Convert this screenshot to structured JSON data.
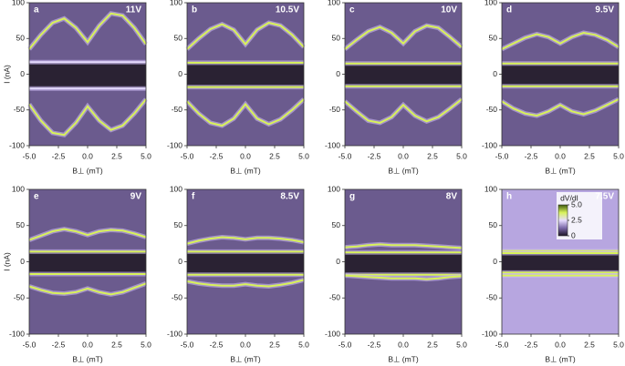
{
  "chart_data": [
    {
      "type": "heatmap",
      "label": "a",
      "title": "11V",
      "ylabel": "I (nA)",
      "xlabel": "B⊥ (mT)",
      "background": "#6b5b8e",
      "x": [
        -5,
        -4,
        -3,
        -2,
        -1,
        0,
        1,
        2,
        3,
        4,
        5
      ],
      "xlim": [
        -5,
        5
      ],
      "xticks": [
        {
          "value": -5,
          "label": "-5.0"
        },
        -2.5,
        {
          "value": 0,
          "label": "0.0"
        },
        2.5,
        {
          "value": 5,
          "label": "5.0"
        }
      ],
      "ylim": [
        -100,
        100
      ],
      "yticks": [
        -100,
        -50,
        0,
        50,
        100
      ],
      "series": [
        {
          "color": "#d8f25a",
          "values": [
            35,
            55,
            72,
            78,
            65,
            45,
            68,
            85,
            82,
            65,
            42
          ]
        },
        {
          "color": "#e6dcff",
          "x": [
            -5,
            5
          ],
          "values": [
            17,
            17
          ]
        },
        {
          "color": "#e6dcff",
          "x": [
            -5,
            5
          ],
          "values": [
            -20,
            -20
          ]
        },
        {
          "color": "#d8f25a",
          "values": [
            -42,
            -65,
            -82,
            -85,
            -68,
            -45,
            -65,
            -78,
            -72,
            -55,
            -35
          ]
        }
      ]
    },
    {
      "type": "heatmap",
      "label": "b",
      "title": "10.5V",
      "xlabel": "B⊥ (mT)",
      "background": "#6b5b8e",
      "x": [
        -5,
        -4,
        -3,
        -2,
        -1,
        0,
        1,
        2,
        3,
        4,
        5
      ],
      "xlim": [
        -5,
        5
      ],
      "xticks": [
        {
          "value": -5,
          "label": "-5.0"
        },
        -2.5,
        {
          "value": 0,
          "label": "0.0"
        },
        2.5,
        {
          "value": 5,
          "label": "5.0"
        }
      ],
      "ylim": [
        -100,
        100
      ],
      "yticks": [
        -100,
        -50,
        0,
        50,
        100
      ],
      "series": [
        {
          "color": "#d8f25a",
          "values": [
            35,
            50,
            63,
            70,
            62,
            42,
            62,
            72,
            68,
            55,
            38
          ]
        },
        {
          "color": "#d8f25a",
          "x": [
            -5,
            5
          ],
          "values": [
            16,
            16
          ]
        },
        {
          "color": "#d8f25a",
          "x": [
            -5,
            5
          ],
          "values": [
            -18,
            -18
          ]
        },
        {
          "color": "#d8f25a",
          "values": [
            -38,
            -55,
            -68,
            -72,
            -62,
            -42,
            -62,
            -70,
            -63,
            -50,
            -35
          ]
        }
      ]
    },
    {
      "type": "heatmap",
      "label": "c",
      "title": "10V",
      "xlabel": "B⊥ (mT)",
      "background": "#6b5b8e",
      "x": [
        -5,
        -4,
        -3,
        -2,
        -1,
        0,
        1,
        2,
        3,
        4,
        5
      ],
      "xlim": [
        -5,
        5
      ],
      "xticks": [
        {
          "value": -5,
          "label": "-5.0"
        },
        -2.5,
        {
          "value": 0,
          "label": "0.0"
        },
        2.5,
        {
          "value": 5,
          "label": "5.0"
        }
      ],
      "ylim": [
        -100,
        100
      ],
      "yticks": [
        -100,
        -50,
        0,
        50,
        100
      ],
      "series": [
        {
          "color": "#d8f25a",
          "values": [
            35,
            48,
            60,
            66,
            58,
            43,
            60,
            68,
            65,
            52,
            38
          ]
        },
        {
          "color": "#d8f25a",
          "x": [
            -5,
            5
          ],
          "values": [
            15,
            15
          ]
        },
        {
          "color": "#d8f25a",
          "x": [
            -5,
            5
          ],
          "values": [
            -17,
            -17
          ]
        },
        {
          "color": "#d8f25a",
          "values": [
            -38,
            -52,
            -65,
            -68,
            -60,
            -43,
            -58,
            -66,
            -60,
            -48,
            -35
          ]
        }
      ]
    },
    {
      "type": "heatmap",
      "label": "d",
      "title": "9.5V",
      "xlabel": "B⊥ (mT)",
      "background": "#6b5b8e",
      "x": [
        -5,
        -4,
        -3,
        -2,
        -1,
        0,
        1,
        2,
        3,
        4,
        5
      ],
      "xlim": [
        -5,
        5
      ],
      "xticks": [
        {
          "value": -5,
          "label": "-5.0"
        },
        -2.5,
        {
          "value": 0,
          "label": "0.0"
        },
        2.5,
        {
          "value": 5,
          "label": "5.0"
        }
      ],
      "ylim": [
        -100,
        100
      ],
      "yticks": [
        -100,
        -50,
        0,
        50,
        100
      ],
      "series": [
        {
          "color": "#d8f25a",
          "values": [
            35,
            43,
            51,
            56,
            52,
            43,
            52,
            58,
            55,
            48,
            38
          ]
        },
        {
          "color": "#d8f25a",
          "x": [
            -5,
            5
          ],
          "values": [
            15,
            15
          ]
        },
        {
          "color": "#d8f25a",
          "x": [
            -5,
            5
          ],
          "values": [
            -17,
            -17
          ]
        },
        {
          "color": "#d8f25a",
          "values": [
            -38,
            -48,
            -55,
            -58,
            -52,
            -43,
            -52,
            -56,
            -51,
            -43,
            -35
          ]
        }
      ]
    },
    {
      "type": "heatmap",
      "label": "e",
      "title": "9V",
      "ylabel": "I (nA)",
      "xlabel": "B⊥ (mT)",
      "background": "#6b5b8e",
      "x": [
        -5,
        -4,
        -3,
        -2,
        -1,
        0,
        1,
        2,
        3,
        4,
        5
      ],
      "xlim": [
        -5,
        5
      ],
      "xticks": [
        {
          "value": -5,
          "label": "-5.0"
        },
        -2.5,
        {
          "value": 0,
          "label": "0.0"
        },
        2.5,
        {
          "value": 5,
          "label": "5.0"
        }
      ],
      "ylim": [
        -100,
        100
      ],
      "yticks": [
        -100,
        -50,
        0,
        50,
        100
      ],
      "series": [
        {
          "color": "#d8f25a",
          "values": [
            30,
            36,
            42,
            45,
            42,
            37,
            42,
            44,
            43,
            39,
            34
          ]
        },
        {
          "color": "#d8f25a",
          "x": [
            -5,
            5
          ],
          "values": [
            14,
            14
          ]
        },
        {
          "color": "#d8f25a",
          "x": [
            -5,
            5
          ],
          "values": [
            -17,
            -17
          ]
        },
        {
          "color": "#d8f25a",
          "values": [
            -34,
            -39,
            -43,
            -44,
            -42,
            -37,
            -42,
            -45,
            -42,
            -36,
            -30
          ]
        }
      ]
    },
    {
      "type": "heatmap",
      "label": "f",
      "title": "8.5V",
      "xlabel": "B⊥ (mT)",
      "background": "#6b5b8e",
      "x": [
        -5,
        -4,
        -3,
        -2,
        -1,
        0,
        1,
        2,
        3,
        4,
        5
      ],
      "xlim": [
        -5,
        5
      ],
      "xticks": [
        {
          "value": -5,
          "label": "-5.0"
        },
        -2.5,
        {
          "value": 0,
          "label": "0.0"
        },
        2.5,
        {
          "value": 5,
          "label": "5.0"
        }
      ],
      "ylim": [
        -100,
        100
      ],
      "yticks": [
        -100,
        -50,
        0,
        50,
        100
      ],
      "series": [
        {
          "color": "#d8f25a",
          "values": [
            25,
            29,
            32,
            34,
            33,
            31,
            33,
            33,
            32,
            30,
            27
          ]
        },
        {
          "color": "#d8f25a",
          "x": [
            -5,
            5
          ],
          "values": [
            14,
            14
          ]
        },
        {
          "color": "#d8f25a",
          "x": [
            -5,
            5
          ],
          "values": [
            -18,
            -18
          ]
        },
        {
          "color": "#d8f25a",
          "values": [
            -27,
            -30,
            -32,
            -33,
            -33,
            -31,
            -33,
            -34,
            -32,
            -29,
            -25
          ]
        }
      ]
    },
    {
      "type": "heatmap",
      "label": "g",
      "title": "8V",
      "xlabel": "B⊥ (mT)",
      "background": "#6b5b8e",
      "x": [
        -5,
        -4,
        -3,
        -2,
        -1,
        0,
        1,
        2,
        3,
        4,
        5
      ],
      "xlim": [
        -5,
        5
      ],
      "xticks": [
        {
          "value": -5,
          "label": "-5.0"
        },
        -2.5,
        {
          "value": 0,
          "label": "0.0"
        },
        2.5,
        {
          "value": 5,
          "label": "5.0"
        }
      ],
      "ylim": [
        -100,
        100
      ],
      "yticks": [
        -100,
        -50,
        0,
        50,
        100
      ],
      "series": [
        {
          "color": "#d8f25a",
          "values": [
            20,
            21,
            23,
            24,
            23,
            23,
            23,
            22,
            21,
            20,
            19
          ]
        },
        {
          "color": "#d8f25a",
          "x": [
            -5,
            5
          ],
          "values": [
            13,
            13
          ]
        },
        {
          "color": "#d8f25a",
          "x": [
            -5,
            5
          ],
          "values": [
            -18,
            -18
          ]
        },
        {
          "color": "#d8f25a",
          "values": [
            -19,
            -20,
            -21,
            -22,
            -23,
            -23,
            -23,
            -24,
            -23,
            -21,
            -20
          ]
        }
      ]
    },
    {
      "type": "heatmap",
      "label": "h",
      "title": "7.5V",
      "xlabel": "B⊥ (mT)",
      "background": "#b7a6e0",
      "x": [
        -5,
        -4,
        -3,
        -2,
        -1,
        0,
        1,
        2,
        3,
        4,
        5
      ],
      "xlim": [
        -5,
        5
      ],
      "xticks": [
        {
          "value": -5,
          "label": "-5.0"
        },
        -2.5,
        {
          "value": 0,
          "label": "0.0"
        },
        2.5,
        {
          "value": 5,
          "label": "5.0"
        }
      ],
      "ylim": [
        -100,
        100
      ],
      "yticks": [
        -100,
        -50,
        0,
        50,
        100
      ],
      "series": [
        {
          "color": "#d8f25a",
          "values": [
            15,
            15,
            15,
            15,
            15,
            15,
            15,
            15,
            15,
            15,
            15
          ]
        },
        {
          "color": "#d8f25a",
          "x": [
            -5,
            5
          ],
          "values": [
            12,
            12
          ]
        },
        {
          "color": "#d8f25a",
          "x": [
            -5,
            5
          ],
          "values": [
            -15,
            -15
          ]
        },
        {
          "color": "#d8f25a",
          "values": [
            -19,
            -19,
            -19,
            -19,
            -19,
            -19,
            -19,
            -19,
            -19,
            -19,
            -19
          ]
        }
      ],
      "colorbar": {
        "label": "dV/dI",
        "lim": [
          0,
          5
        ],
        "ticks": [
          0,
          2.5,
          {
            "value": 5,
            "label": "5.0"
          }
        ],
        "colors": [
          "#1c1426",
          "#7a68a8",
          "#e6dcff",
          "#d8f25a",
          "#3f5a10"
        ]
      }
    }
  ]
}
